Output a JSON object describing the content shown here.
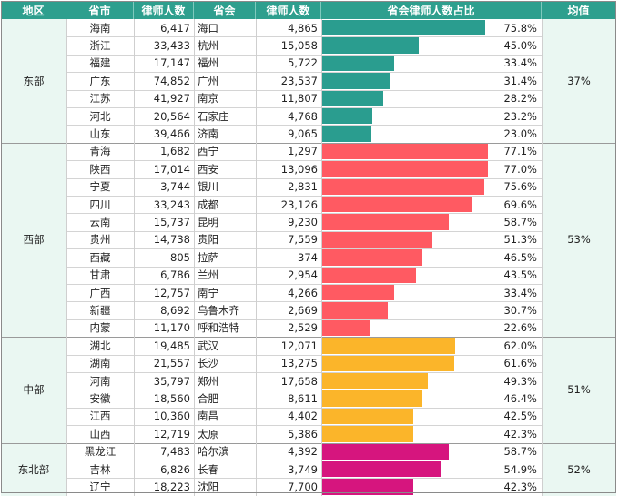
{
  "colors": {
    "header_bg": "#2e9f8e",
    "group_bg": "#eaf7f2",
    "bar_east": "#2a9d8f",
    "bar_west": "#ff5a62",
    "bar_central": "#fbb52a",
    "bar_northeast": "#d6157e"
  },
  "chart_data": {
    "type": "table",
    "headers": [
      "地区",
      "省市",
      "律师人数",
      "省会",
      "律师人数",
      "省会律师人数占比",
      "均值"
    ],
    "groups": [
      {
        "region": "东部",
        "average": "37%",
        "color": "#2a9d8f",
        "rows": [
          {
            "province": "海南",
            "province_lawyers": "6,417",
            "capital": "海口",
            "capital_lawyers": "4,865",
            "share": 75.8,
            "share_label": "75.8%"
          },
          {
            "province": "浙江",
            "province_lawyers": "33,433",
            "capital": "杭州",
            "capital_lawyers": "15,058",
            "share": 45.0,
            "share_label": "45.0%"
          },
          {
            "province": "福建",
            "province_lawyers": "17,147",
            "capital": "福州",
            "capital_lawyers": "5,722",
            "share": 33.4,
            "share_label": "33.4%"
          },
          {
            "province": "广东",
            "province_lawyers": "74,852",
            "capital": "广州",
            "capital_lawyers": "23,537",
            "share": 31.4,
            "share_label": "31.4%"
          },
          {
            "province": "江苏",
            "province_lawyers": "41,927",
            "capital": "南京",
            "capital_lawyers": "11,807",
            "share": 28.2,
            "share_label": "28.2%"
          },
          {
            "province": "河北",
            "province_lawyers": "20,564",
            "capital": "石家庄",
            "capital_lawyers": "4,768",
            "share": 23.2,
            "share_label": "23.2%"
          },
          {
            "province": "山东",
            "province_lawyers": "39,466",
            "capital": "济南",
            "capital_lawyers": "9,065",
            "share": 23.0,
            "share_label": "23.0%"
          }
        ]
      },
      {
        "region": "西部",
        "average": "53%",
        "color": "#ff5a62",
        "rows": [
          {
            "province": "青海",
            "province_lawyers": "1,682",
            "capital": "西宁",
            "capital_lawyers": "1,297",
            "share": 77.1,
            "share_label": "77.1%"
          },
          {
            "province": "陕西",
            "province_lawyers": "17,014",
            "capital": "西安",
            "capital_lawyers": "13,096",
            "share": 77.0,
            "share_label": "77.0%"
          },
          {
            "province": "宁夏",
            "province_lawyers": "3,744",
            "capital": "银川",
            "capital_lawyers": "2,831",
            "share": 75.6,
            "share_label": "75.6%"
          },
          {
            "province": "四川",
            "province_lawyers": "33,243",
            "capital": "成都",
            "capital_lawyers": "23,126",
            "share": 69.6,
            "share_label": "69.6%"
          },
          {
            "province": "云南",
            "province_lawyers": "15,737",
            "capital": "昆明",
            "capital_lawyers": "9,230",
            "share": 58.7,
            "share_label": "58.7%"
          },
          {
            "province": "贵州",
            "province_lawyers": "14,738",
            "capital": "贵阳",
            "capital_lawyers": "7,559",
            "share": 51.3,
            "share_label": "51.3%"
          },
          {
            "province": "西藏",
            "province_lawyers": "805",
            "capital": "拉萨",
            "capital_lawyers": "374",
            "share": 46.5,
            "share_label": "46.5%"
          },
          {
            "province": "甘肃",
            "province_lawyers": "6,786",
            "capital": "兰州",
            "capital_lawyers": "2,954",
            "share": 43.5,
            "share_label": "43.5%"
          },
          {
            "province": "广西",
            "province_lawyers": "12,757",
            "capital": "南宁",
            "capital_lawyers": "4,266",
            "share": 33.4,
            "share_label": "33.4%"
          },
          {
            "province": "新疆",
            "province_lawyers": "8,692",
            "capital": "乌鲁木齐",
            "capital_lawyers": "2,669",
            "share": 30.7,
            "share_label": "30.7%"
          },
          {
            "province": "内蒙",
            "province_lawyers": "11,170",
            "capital": "呼和浩特",
            "capital_lawyers": "2,529",
            "share": 22.6,
            "share_label": "22.6%"
          }
        ]
      },
      {
        "region": "中部",
        "average": "51%",
        "color": "#fbb52a",
        "rows": [
          {
            "province": "湖北",
            "province_lawyers": "19,485",
            "capital": "武汉",
            "capital_lawyers": "12,071",
            "share": 62.0,
            "share_label": "62.0%"
          },
          {
            "province": "湖南",
            "province_lawyers": "21,557",
            "capital": "长沙",
            "capital_lawyers": "13,275",
            "share": 61.6,
            "share_label": "61.6%"
          },
          {
            "province": "河南",
            "province_lawyers": "35,797",
            "capital": "郑州",
            "capital_lawyers": "17,658",
            "share": 49.3,
            "share_label": "49.3%"
          },
          {
            "province": "安徽",
            "province_lawyers": "18,560",
            "capital": "合肥",
            "capital_lawyers": "8,611",
            "share": 46.4,
            "share_label": "46.4%"
          },
          {
            "province": "江西",
            "province_lawyers": "10,360",
            "capital": "南昌",
            "capital_lawyers": "4,402",
            "share": 42.5,
            "share_label": "42.5%"
          },
          {
            "province": "山西",
            "province_lawyers": "12,719",
            "capital": "太原",
            "capital_lawyers": "5,386",
            "share": 42.3,
            "share_label": "42.3%"
          }
        ]
      },
      {
        "region": "东北部",
        "average": "52%",
        "color": "#d6157e",
        "rows": [
          {
            "province": "黑龙江",
            "province_lawyers": "7,483",
            "capital": "哈尔滨",
            "capital_lawyers": "4,392",
            "share": 58.7,
            "share_label": "58.7%"
          },
          {
            "province": "吉林",
            "province_lawyers": "6,826",
            "capital": "长春",
            "capital_lawyers": "3,749",
            "share": 54.9,
            "share_label": "54.9%"
          },
          {
            "province": "辽宁",
            "province_lawyers": "18,223",
            "capital": "沈阳",
            "capital_lawyers": "7,700",
            "share": 42.3,
            "share_label": "42.3%"
          }
        ]
      }
    ]
  }
}
